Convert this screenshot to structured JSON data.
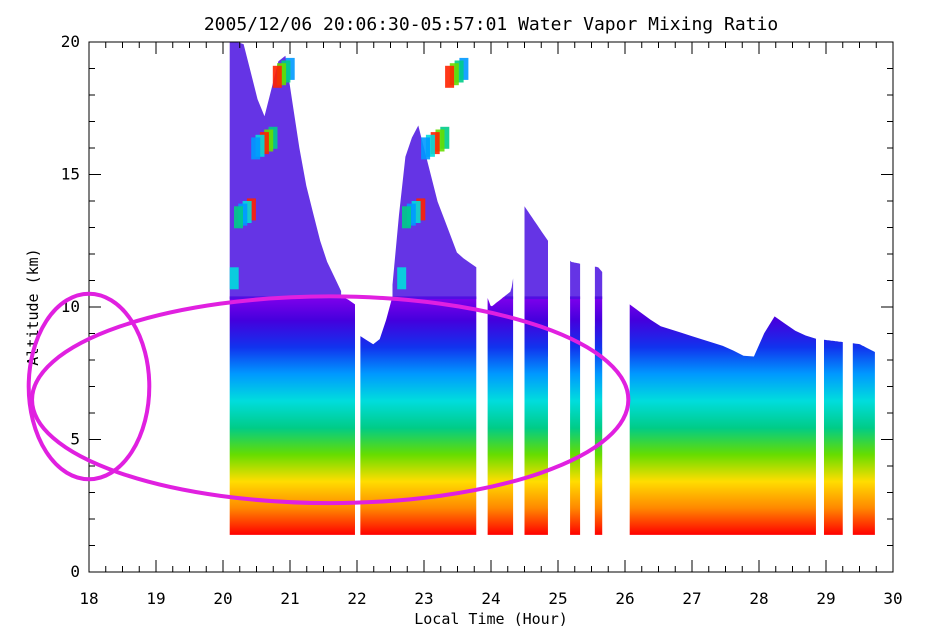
{
  "chart_data": {
    "type": "heatmap",
    "title": "2005/12/06 20:06:30-05:57:01 Water Vapor Mixing Ratio",
    "xlabel": "Local Time (Hour)",
    "ylabel": "Altitude (km)",
    "xlim": [
      18,
      30
    ],
    "ylim": [
      0,
      20
    ],
    "x_ticks": [
      "18",
      "19",
      "20",
      "21",
      "22",
      "23",
      "24",
      "25",
      "26",
      "27",
      "28",
      "29",
      "30"
    ],
    "y_ticks": [
      "0",
      "5",
      "10",
      "15",
      "20"
    ],
    "colormap": [
      "#ff0000",
      "#ff8800",
      "#ffdd00",
      "#66dd00",
      "#00cc88",
      "#00dddd",
      "#0099ff",
      "#1133ee",
      "#4400dd",
      "#8800ee"
    ],
    "lower_bound_km": 1.4,
    "top_profile": [
      {
        "x": 20.1,
        "top": 20
      },
      {
        "x": 20.3,
        "top": 20
      },
      {
        "x": 20.6,
        "top": 17
      },
      {
        "x": 20.9,
        "top": 20
      },
      {
        "x": 21.2,
        "top": 15
      },
      {
        "x": 21.5,
        "top": 12
      },
      {
        "x": 21.8,
        "top": 10.4
      },
      {
        "x": 21.97,
        "top": 10.1
      },
      {
        "x": 22.05,
        "top": 8.9
      },
      {
        "x": 22.3,
        "top": 8.5
      },
      {
        "x": 22.5,
        "top": 10
      },
      {
        "x": 22.7,
        "top": 15.5
      },
      {
        "x": 22.9,
        "top": 17
      },
      {
        "x": 23.2,
        "top": 14
      },
      {
        "x": 23.5,
        "top": 12
      },
      {
        "x": 23.78,
        "top": 11.5
      },
      {
        "x": 24.0,
        "top": 10
      },
      {
        "x": 24.3,
        "top": 10.6
      },
      {
        "x": 24.5,
        "top": 13.8
      },
      {
        "x": 24.85,
        "top": 12.5
      },
      {
        "x": 25.2,
        "top": 11.7
      },
      {
        "x": 25.6,
        "top": 11.5
      },
      {
        "x": 26.07,
        "top": 10.1
      },
      {
        "x": 26.5,
        "top": 9.3
      },
      {
        "x": 27.0,
        "top": 8.9
      },
      {
        "x": 27.5,
        "top": 8.5
      },
      {
        "x": 27.9,
        "top": 8.0
      },
      {
        "x": 28.2,
        "top": 9.7
      },
      {
        "x": 28.6,
        "top": 9.0
      },
      {
        "x": 28.85,
        "top": 8.8
      },
      {
        "x": 29.5,
        "top": 8.6
      },
      {
        "x": 29.73,
        "top": 8.3
      }
    ],
    "data_segments": [
      [
        20.1,
        21.97
      ],
      [
        22.05,
        23.78
      ],
      [
        23.95,
        24.33
      ],
      [
        24.5,
        24.85
      ],
      [
        25.18,
        25.33
      ],
      [
        25.55,
        25.66
      ],
      [
        26.07,
        28.85
      ],
      [
        28.97,
        29.25
      ],
      [
        29.4,
        29.73
      ]
    ],
    "upper_patch_segments": [
      [
        20.1,
        21.0
      ],
      [
        22.6,
        23.6
      ]
    ],
    "annotation_ellipses": [
      {
        "cx": 21.6,
        "cy_km": 6.5,
        "rx_hours": 4.45,
        "ry_km": 3.9,
        "color": "#e020e0"
      },
      {
        "cx": 18.0,
        "cy_km": 7.0,
        "rx_hours": 0.9,
        "ry_km": 3.5,
        "color": "#e020e0"
      }
    ]
  }
}
